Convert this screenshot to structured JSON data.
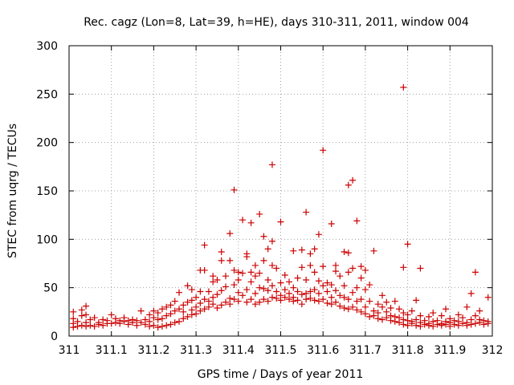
{
  "chart_data": {
    "type": "scatter",
    "title": "Rec. cagz (Lon=8, Lat=39, h=HE), days 310-311, 2011, window 004",
    "xlabel": "GPS time / Days of year 2011",
    "ylabel": "STEC from uqrg / TECUs",
    "xlim": [
      311,
      312
    ],
    "ylim": [
      0,
      300
    ],
    "x_ticks": [
      311,
      311.1,
      311.2,
      311.3,
      311.4,
      311.5,
      311.6,
      311.7,
      311.8,
      311.9,
      312
    ],
    "x_tick_labels": [
      "311",
      "311.1",
      "311.2",
      "311.3",
      "311.4",
      "311.5",
      "311.6",
      "311.7",
      "311.8",
      "311.9",
      "312"
    ],
    "y_ticks": [
      0,
      50,
      100,
      150,
      200,
      250,
      300
    ],
    "y_tick_labels": [
      "0",
      "50",
      "100",
      "150",
      "200",
      "250",
      "300"
    ],
    "grid": true,
    "marker": "+",
    "color": "#cc0000",
    "series": [
      {
        "name": "STEC",
        "points": [
          [
            311.01,
            9
          ],
          [
            311.01,
            13
          ],
          [
            311.01,
            18
          ],
          [
            311.01,
            25
          ],
          [
            311.02,
            10
          ],
          [
            311.02,
            15
          ],
          [
            311.03,
            11
          ],
          [
            311.03,
            21
          ],
          [
            311.03,
            27
          ],
          [
            311.04,
            10
          ],
          [
            311.04,
            14
          ],
          [
            311.04,
            22
          ],
          [
            311.04,
            31
          ],
          [
            311.05,
            11
          ],
          [
            311.05,
            17
          ],
          [
            311.06,
            10
          ],
          [
            311.06,
            19
          ],
          [
            311.07,
            12
          ],
          [
            311.07,
            14
          ],
          [
            311.08,
            11
          ],
          [
            311.08,
            17
          ],
          [
            311.09,
            13
          ],
          [
            311.09,
            16
          ],
          [
            311.1,
            13
          ],
          [
            311.1,
            22
          ],
          [
            311.11,
            14
          ],
          [
            311.11,
            18
          ],
          [
            311.12,
            13
          ],
          [
            311.12,
            16
          ],
          [
            311.13,
            15
          ],
          [
            311.13,
            19
          ],
          [
            311.14,
            12
          ],
          [
            311.14,
            16
          ],
          [
            311.15,
            14
          ],
          [
            311.15,
            17
          ],
          [
            311.16,
            11
          ],
          [
            311.16,
            16
          ],
          [
            311.17,
            14
          ],
          [
            311.17,
            26
          ],
          [
            311.18,
            12
          ],
          [
            311.18,
            17
          ],
          [
            311.19,
            10
          ],
          [
            311.19,
            15
          ],
          [
            311.19,
            22
          ],
          [
            311.2,
            11
          ],
          [
            311.2,
            19
          ],
          [
            311.2,
            26
          ],
          [
            311.21,
            9
          ],
          [
            311.21,
            17
          ],
          [
            311.21,
            24
          ],
          [
            311.22,
            10
          ],
          [
            311.22,
            18
          ],
          [
            311.22,
            28
          ],
          [
            311.23,
            11
          ],
          [
            311.23,
            21
          ],
          [
            311.23,
            30
          ],
          [
            311.24,
            12
          ],
          [
            311.24,
            23
          ],
          [
            311.24,
            32
          ],
          [
            311.25,
            14
          ],
          [
            311.25,
            26
          ],
          [
            311.25,
            36
          ],
          [
            311.26,
            15
          ],
          [
            311.26,
            28
          ],
          [
            311.26,
            45
          ],
          [
            311.27,
            18
          ],
          [
            311.27,
            25
          ],
          [
            311.27,
            32
          ],
          [
            311.28,
            20
          ],
          [
            311.28,
            35
          ],
          [
            311.28,
            52
          ],
          [
            311.29,
            22
          ],
          [
            311.29,
            27
          ],
          [
            311.29,
            37
          ],
          [
            311.29,
            48
          ],
          [
            311.3,
            23
          ],
          [
            311.3,
            30
          ],
          [
            311.3,
            40
          ],
          [
            311.31,
            26
          ],
          [
            311.31,
            34
          ],
          [
            311.31,
            46
          ],
          [
            311.31,
            68
          ],
          [
            311.32,
            28
          ],
          [
            311.32,
            38
          ],
          [
            311.32,
            68
          ],
          [
            311.32,
            94
          ],
          [
            311.33,
            30
          ],
          [
            311.33,
            36
          ],
          [
            311.33,
            46
          ],
          [
            311.34,
            33
          ],
          [
            311.34,
            40
          ],
          [
            311.34,
            56
          ],
          [
            311.34,
            62
          ],
          [
            311.35,
            29
          ],
          [
            311.35,
            43
          ],
          [
            311.35,
            58
          ],
          [
            311.36,
            32
          ],
          [
            311.36,
            47
          ],
          [
            311.36,
            78
          ],
          [
            311.36,
            87
          ],
          [
            311.37,
            35
          ],
          [
            311.37,
            51
          ],
          [
            311.37,
            62
          ],
          [
            311.38,
            33
          ],
          [
            311.38,
            39
          ],
          [
            311.38,
            78
          ],
          [
            311.38,
            106
          ],
          [
            311.39,
            38
          ],
          [
            311.39,
            53
          ],
          [
            311.39,
            68
          ],
          [
            311.39,
            151
          ],
          [
            311.4,
            36
          ],
          [
            311.4,
            45
          ],
          [
            311.4,
            58
          ],
          [
            311.4,
            66
          ],
          [
            311.41,
            42
          ],
          [
            311.41,
            65
          ],
          [
            311.41,
            120
          ],
          [
            311.42,
            35
          ],
          [
            311.42,
            48
          ],
          [
            311.42,
            82
          ],
          [
            311.42,
            85
          ],
          [
            311.43,
            38
          ],
          [
            311.43,
            56
          ],
          [
            311.43,
            66
          ],
          [
            311.43,
            117
          ],
          [
            311.44,
            33
          ],
          [
            311.44,
            44
          ],
          [
            311.44,
            62
          ],
          [
            311.44,
            73
          ],
          [
            311.45,
            35
          ],
          [
            311.45,
            50
          ],
          [
            311.45,
            65
          ],
          [
            311.45,
            126
          ],
          [
            311.46,
            38
          ],
          [
            311.46,
            49
          ],
          [
            311.46,
            78
          ],
          [
            311.46,
            103
          ],
          [
            311.47,
            36
          ],
          [
            311.47,
            47
          ],
          [
            311.47,
            58
          ],
          [
            311.47,
            90
          ],
          [
            311.48,
            40
          ],
          [
            311.48,
            52
          ],
          [
            311.48,
            73
          ],
          [
            311.48,
            98
          ],
          [
            311.48,
            177
          ],
          [
            311.49,
            39
          ],
          [
            311.49,
            46
          ],
          [
            311.49,
            70
          ],
          [
            311.5,
            37
          ],
          [
            311.5,
            42
          ],
          [
            311.5,
            55
          ],
          [
            311.5,
            118
          ],
          [
            311.51,
            40
          ],
          [
            311.51,
            48
          ],
          [
            311.51,
            63
          ],
          [
            311.52,
            38
          ],
          [
            311.52,
            44
          ],
          [
            311.52,
            56
          ],
          [
            311.53,
            36
          ],
          [
            311.53,
            40
          ],
          [
            311.53,
            50
          ],
          [
            311.53,
            88
          ],
          [
            311.54,
            37
          ],
          [
            311.54,
            46
          ],
          [
            311.54,
            60
          ],
          [
            311.55,
            33
          ],
          [
            311.55,
            43
          ],
          [
            311.55,
            71
          ],
          [
            311.55,
            89
          ],
          [
            311.56,
            38
          ],
          [
            311.56,
            44
          ],
          [
            311.56,
            58
          ],
          [
            311.56,
            128
          ],
          [
            311.57,
            39
          ],
          [
            311.57,
            46
          ],
          [
            311.57,
            73
          ],
          [
            311.57,
            85
          ],
          [
            311.58,
            37
          ],
          [
            311.58,
            48
          ],
          [
            311.58,
            66
          ],
          [
            311.58,
            90
          ],
          [
            311.59,
            36
          ],
          [
            311.59,
            44
          ],
          [
            311.59,
            57
          ],
          [
            311.59,
            105
          ],
          [
            311.6,
            38
          ],
          [
            311.6,
            52
          ],
          [
            311.6,
            72
          ],
          [
            311.6,
            192
          ],
          [
            311.61,
            34
          ],
          [
            311.61,
            46
          ],
          [
            311.61,
            55
          ],
          [
            311.62,
            33
          ],
          [
            311.62,
            40
          ],
          [
            311.62,
            53
          ],
          [
            311.62,
            116
          ],
          [
            311.63,
            35
          ],
          [
            311.63,
            47
          ],
          [
            311.63,
            67
          ],
          [
            311.63,
            73
          ],
          [
            311.64,
            31
          ],
          [
            311.64,
            42
          ],
          [
            311.64,
            62
          ],
          [
            311.65,
            29
          ],
          [
            311.65,
            40
          ],
          [
            311.65,
            52
          ],
          [
            311.65,
            87
          ],
          [
            311.66,
            28
          ],
          [
            311.66,
            38
          ],
          [
            311.66,
            66
          ],
          [
            311.66,
            86
          ],
          [
            311.66,
            156
          ],
          [
            311.67,
            30
          ],
          [
            311.67,
            45
          ],
          [
            311.67,
            70
          ],
          [
            311.67,
            161
          ],
          [
            311.68,
            27
          ],
          [
            311.68,
            36
          ],
          [
            311.68,
            50
          ],
          [
            311.68,
            119
          ],
          [
            311.69,
            25
          ],
          [
            311.69,
            38
          ],
          [
            311.69,
            60
          ],
          [
            311.69,
            72
          ],
          [
            311.7,
            23
          ],
          [
            311.7,
            30
          ],
          [
            311.7,
            48
          ],
          [
            311.7,
            68
          ],
          [
            311.71,
            20
          ],
          [
            311.71,
            36
          ],
          [
            311.71,
            53
          ],
          [
            311.72,
            21
          ],
          [
            311.72,
            26
          ],
          [
            311.72,
            88
          ],
          [
            311.73,
            18
          ],
          [
            311.73,
            24
          ],
          [
            311.73,
            33
          ],
          [
            311.74,
            17
          ],
          [
            311.74,
            30
          ],
          [
            311.74,
            42
          ],
          [
            311.75,
            19
          ],
          [
            311.75,
            25
          ],
          [
            311.75,
            35
          ],
          [
            311.76,
            16
          ],
          [
            311.76,
            21
          ],
          [
            311.76,
            29
          ],
          [
            311.77,
            15
          ],
          [
            311.77,
            20
          ],
          [
            311.77,
            36
          ],
          [
            311.78,
            14
          ],
          [
            311.78,
            19
          ],
          [
            311.78,
            28
          ],
          [
            311.79,
            12
          ],
          [
            311.79,
            17
          ],
          [
            311.79,
            24
          ],
          [
            311.79,
            71
          ],
          [
            311.79,
            257
          ],
          [
            311.8,
            11
          ],
          [
            311.8,
            16
          ],
          [
            311.8,
            22
          ],
          [
            311.8,
            95
          ],
          [
            311.81,
            13
          ],
          [
            311.81,
            15
          ],
          [
            311.81,
            26
          ],
          [
            311.82,
            11
          ],
          [
            311.82,
            17
          ],
          [
            311.82,
            37
          ],
          [
            311.83,
            10
          ],
          [
            311.83,
            14
          ],
          [
            311.83,
            21
          ],
          [
            311.83,
            70
          ],
          [
            311.84,
            12
          ],
          [
            311.84,
            16
          ],
          [
            311.85,
            11
          ],
          [
            311.85,
            13
          ],
          [
            311.85,
            20
          ],
          [
            311.86,
            10
          ],
          [
            311.86,
            15
          ],
          [
            311.86,
            24
          ],
          [
            311.87,
            12
          ],
          [
            311.87,
            16
          ],
          [
            311.88,
            11
          ],
          [
            311.88,
            13
          ],
          [
            311.88,
            21
          ],
          [
            311.89,
            12
          ],
          [
            311.89,
            15
          ],
          [
            311.89,
            28
          ],
          [
            311.9,
            10
          ],
          [
            311.9,
            14
          ],
          [
            311.9,
            18
          ],
          [
            311.91,
            12
          ],
          [
            311.91,
            16
          ],
          [
            311.92,
            11
          ],
          [
            311.92,
            15
          ],
          [
            311.92,
            22
          ],
          [
            311.93,
            13
          ],
          [
            311.93,
            19
          ],
          [
            311.94,
            11
          ],
          [
            311.94,
            14
          ],
          [
            311.94,
            30
          ],
          [
            311.95,
            12
          ],
          [
            311.95,
            17
          ],
          [
            311.95,
            44
          ],
          [
            311.96,
            13
          ],
          [
            311.96,
            21
          ],
          [
            311.96,
            66
          ],
          [
            311.97,
            14
          ],
          [
            311.97,
            17
          ],
          [
            311.97,
            26
          ],
          [
            311.98,
            12
          ],
          [
            311.98,
            16
          ],
          [
            311.99,
            13
          ],
          [
            311.99,
            15
          ],
          [
            311.99,
            40
          ]
        ]
      }
    ]
  }
}
